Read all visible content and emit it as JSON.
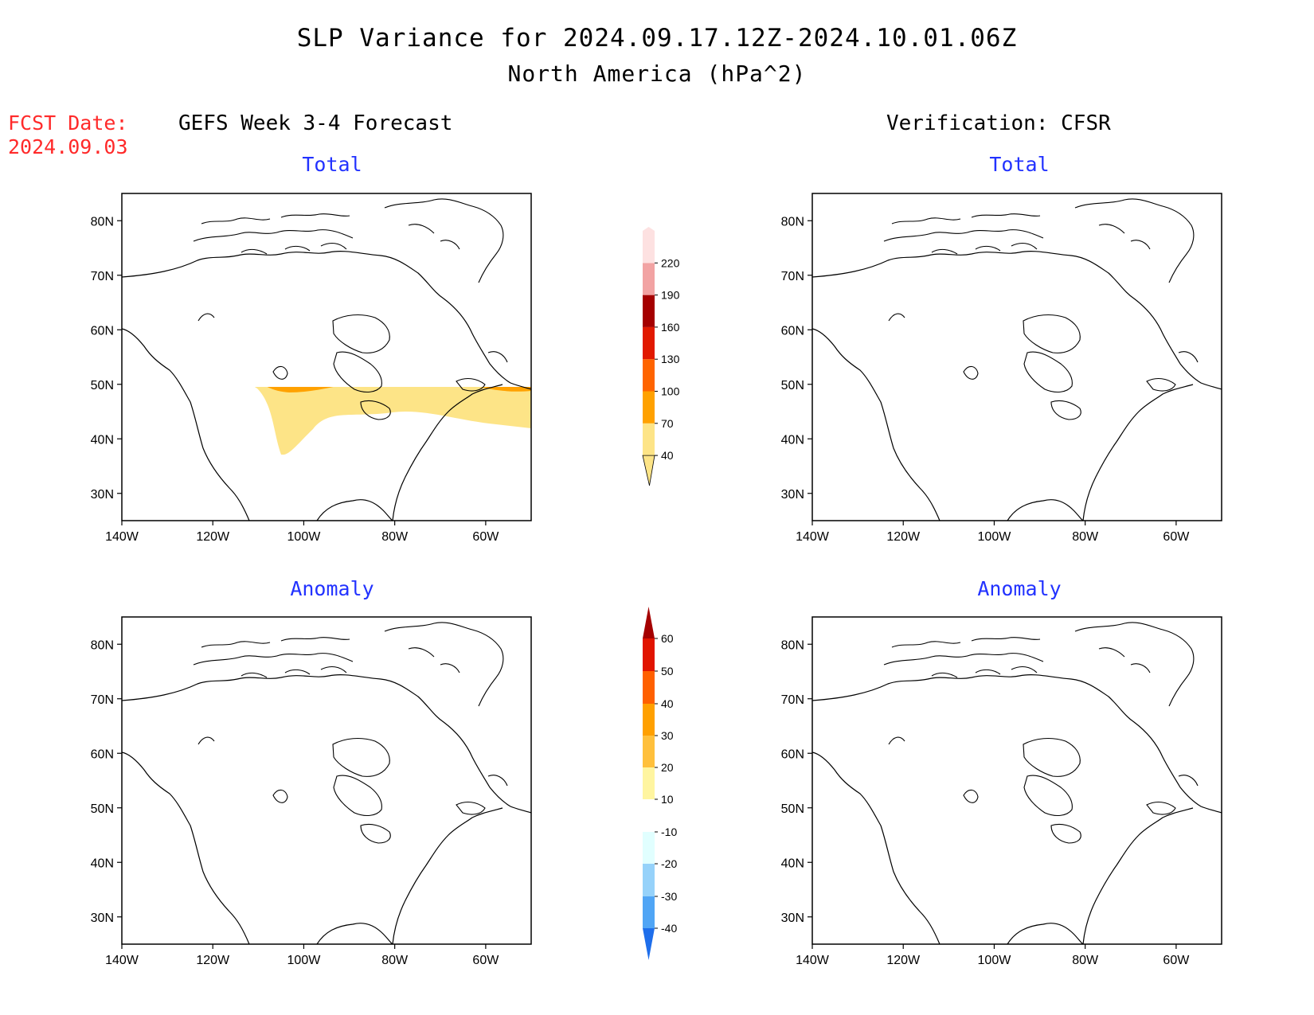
{
  "header": {
    "title": "SLP Variance for 2024.09.17.12Z-2024.10.01.06Z",
    "subtitle": "North America (hPa^2)",
    "fcst_label": "FCST Date:",
    "fcst_date": "2024.09.03"
  },
  "columns": {
    "left": "GEFS Week 3-4 Forecast",
    "right": "Verification: CFSR"
  },
  "panels": {
    "total": "Total",
    "anomaly": "Anomaly"
  },
  "axes": {
    "lat_ticks": [
      "80N",
      "70N",
      "60N",
      "50N",
      "40N",
      "30N"
    ],
    "lon_ticks": [
      "140W",
      "120W",
      "100W",
      "80W",
      "60W"
    ],
    "lat_range": [
      25,
      85
    ],
    "lon_range": [
      -140,
      -50
    ]
  },
  "colorbars": {
    "total": {
      "levels": [
        "40",
        "70",
        "100",
        "130",
        "160",
        "190",
        "220"
      ],
      "colors": [
        "#fde487",
        "#ffa100",
        "#ff6400",
        "#e11900",
        "#a50000",
        "#f2a3a3",
        "#fde1e1"
      ]
    },
    "anomaly": {
      "levels": [
        "-40",
        "-30",
        "-20",
        "-10",
        "10",
        "20",
        "30",
        "40",
        "50",
        "60"
      ],
      "colors": [
        "#1e6eeb",
        "#50a5f5",
        "#96d2fa",
        "#e1ffff",
        "#ffffff",
        "#fff5a0",
        "#ffc03c",
        "#ffa000",
        "#ff6000",
        "#e11400",
        "#a50000"
      ]
    }
  }
}
